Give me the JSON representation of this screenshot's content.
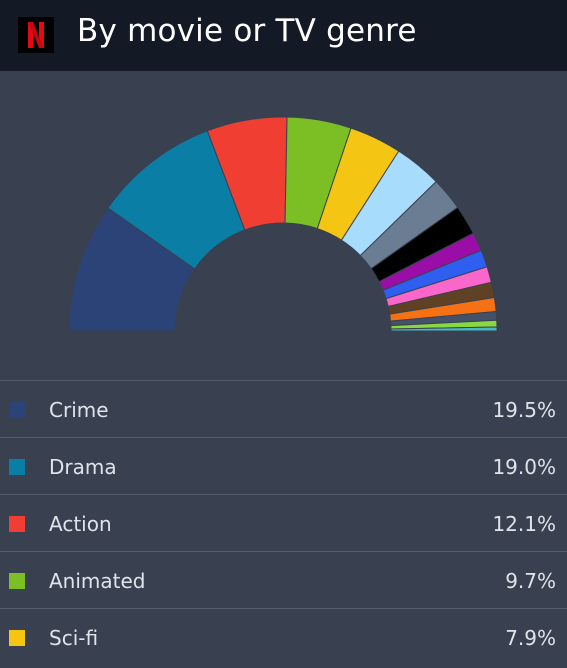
{
  "header": {
    "logo_icon": "netflix-n-logo",
    "title": "By movie or TV genre"
  },
  "chart_data": {
    "type": "pie",
    "variant": "half-donut",
    "title": "By movie or TV genre",
    "slices": [
      {
        "label": "Crime",
        "value": 19.5,
        "color": "#2c4377"
      },
      {
        "label": "Drama",
        "value": 19.0,
        "color": "#0a7ea4"
      },
      {
        "label": "Action",
        "value": 12.1,
        "color": "#f03e33"
      },
      {
        "label": "Animated",
        "value": 9.7,
        "color": "#7bbf24"
      },
      {
        "label": "Sci-fi",
        "value": 7.9,
        "color": "#f4c613"
      },
      {
        "value": 7.2,
        "color": "#a8dcfc"
      },
      {
        "value": 5.0,
        "color": "#6a7d92"
      },
      {
        "value": 4.5,
        "color": "#000000"
      },
      {
        "value": 2.8,
        "color": "#9a0ea7"
      },
      {
        "value": 2.6,
        "color": "#2e5ff1"
      },
      {
        "value": 2.4,
        "color": "#f867c9"
      },
      {
        "value": 2.3,
        "color": "#5f4223"
      },
      {
        "value": 2.1,
        "color": "#f57113"
      },
      {
        "value": 1.3,
        "color": "#435269"
      },
      {
        "value": 1.0,
        "color": "#8ad83f"
      },
      {
        "value": 0.6,
        "color": "#48b8c4"
      }
    ]
  },
  "legend": [
    {
      "label": "Crime",
      "value": "19.5%",
      "color": "#2c4377"
    },
    {
      "label": "Drama",
      "value": "19.0%",
      "color": "#0a7ea4"
    },
    {
      "label": "Action",
      "value": "12.1%",
      "color": "#f03e33"
    },
    {
      "label": "Animated",
      "value": "9.7%",
      "color": "#7bbf24"
    },
    {
      "label": "Sci-fi",
      "value": "7.9%",
      "color": "#f4c613"
    }
  ]
}
